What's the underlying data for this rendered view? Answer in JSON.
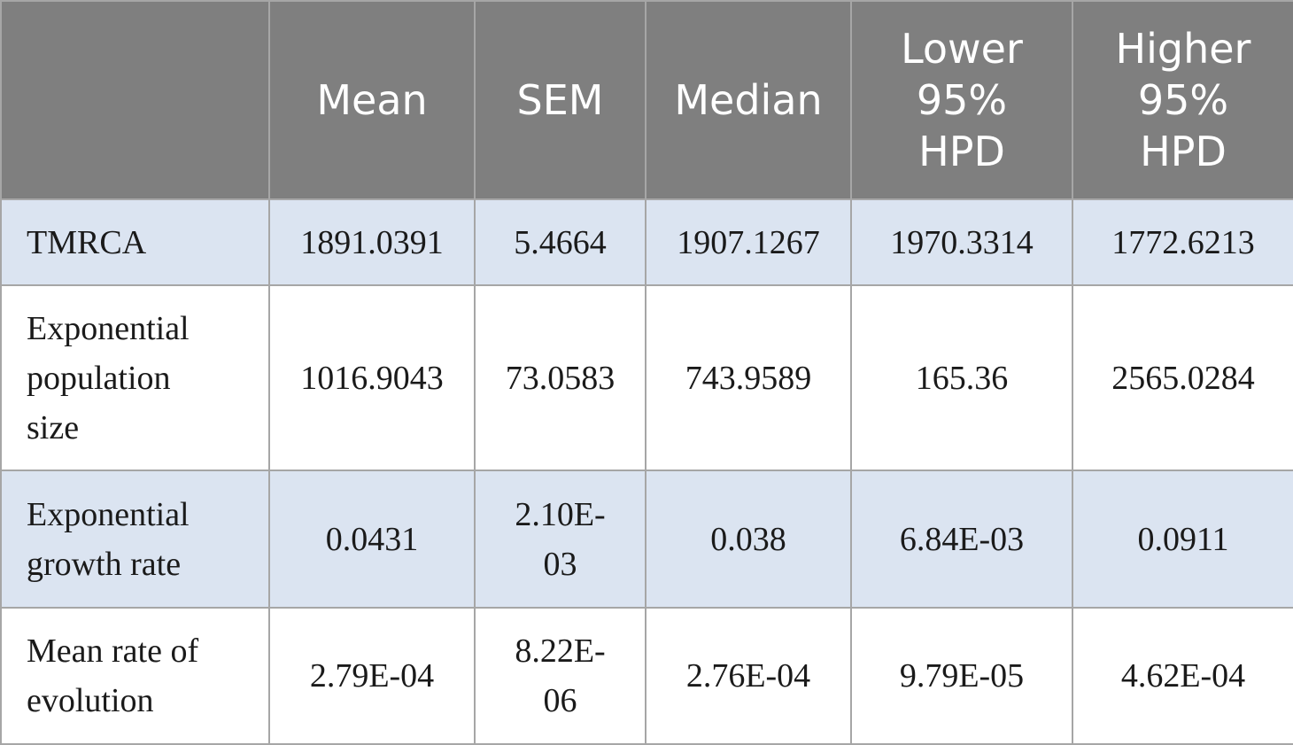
{
  "table": {
    "headers": [
      "",
      "Mean",
      "SEM",
      "Median",
      "Lower\n95%\nHPD",
      "Higher\n95%\nHPD"
    ],
    "rows": [
      {
        "label": "TMRCA",
        "values": [
          "1891.0391",
          "5.4664",
          "1907.1267",
          "1970.3314",
          "1772.6213"
        ]
      },
      {
        "label": "Exponential\npopulation\nsize",
        "values": [
          "1016.9043",
          "73.0583",
          "743.9589",
          "165.36",
          "2565.0284"
        ]
      },
      {
        "label": "Exponential\ngrowth rate",
        "values": [
          "0.0431",
          "2.10E-\n03",
          "0.038",
          "6.84E-03",
          "0.0911"
        ]
      },
      {
        "label": "Mean rate of\nevolution",
        "values": [
          "2.79E-04",
          "8.22E-\n06",
          "2.76E-04",
          "9.79E-05",
          "4.62E-04"
        ]
      }
    ]
  },
  "colors": {
    "header_bg": "#7f7f7f",
    "header_text": "#ffffff",
    "shaded_row_bg": "#dbe4f1",
    "border": "#a6a6a6"
  }
}
